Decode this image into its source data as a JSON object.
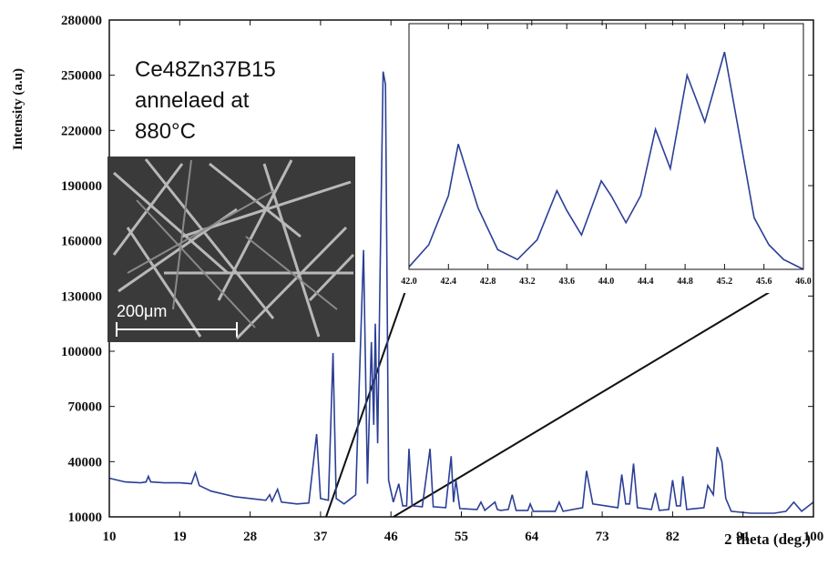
{
  "chart_data": [
    {
      "type": "line",
      "xlabel": "2 theta (deg.)",
      "ylabel": "Intensity (a.u)",
      "annotation": [
        "Ce48Zn37B15",
        "annelaed at",
        "880°C"
      ],
      "scale_bar": "200μm",
      "xlim": [
        10,
        100
      ],
      "xticks": [
        10,
        19,
        28,
        37,
        46,
        55,
        64,
        73,
        82,
        91,
        100
      ],
      "ylim": [
        10000,
        280000
      ],
      "yticks": [
        10000,
        40000,
        70000,
        100000,
        130000,
        160000,
        190000,
        220000,
        250000,
        280000
      ],
      "series": [
        {
          "color": "#2b3f96",
          "x": [
            10,
            12,
            14,
            14.7,
            15,
            15.3,
            17,
            19,
            20.5,
            21,
            21.5,
            23,
            26,
            28,
            30,
            30.5,
            30.8,
            31.5,
            32,
            34,
            35.5,
            36.5,
            37,
            38,
            38.6,
            39,
            40,
            41.5,
            42.5,
            43,
            43.5,
            43.8,
            44,
            44.3,
            44.6,
            45,
            45.3,
            45.7,
            46.3,
            47,
            47.5,
            48,
            48.3,
            48.7,
            50,
            51,
            51.4,
            53,
            53.7,
            54,
            54.3,
            54.8,
            57,
            57.5,
            58,
            59.3,
            59.6,
            60,
            61,
            61.5,
            62,
            63.5,
            63.8,
            64.2,
            67,
            67.5,
            68,
            70.5,
            71,
            71.8,
            75,
            75.5,
            76,
            76.5,
            77,
            77.5,
            79.3,
            79.8,
            80.3,
            81.5,
            82,
            82.5,
            83,
            83.3,
            83.8,
            86,
            86.5,
            87.2,
            87.7,
            88.3,
            88.8,
            89.5,
            92,
            95,
            96.5,
            97.5,
            98.5,
            100
          ],
          "values": [
            31000,
            29000,
            28500,
            29000,
            32000,
            29000,
            28500,
            28500,
            28000,
            34000,
            27000,
            24000,
            21000,
            20000,
            19000,
            22000,
            18500,
            25000,
            18000,
            17000,
            17500,
            55000,
            20000,
            19000,
            99000,
            20000,
            17000,
            22000,
            155000,
            28000,
            105000,
            60000,
            115000,
            50000,
            140000,
            252000,
            245000,
            30000,
            18000,
            28000,
            16000,
            16000,
            47000,
            16000,
            15500,
            47000,
            15500,
            15000,
            43000,
            18000,
            30000,
            14500,
            14000,
            18000,
            13500,
            18000,
            14000,
            13500,
            14000,
            22000,
            13500,
            13500,
            17000,
            13000,
            13000,
            18000,
            13000,
            15000,
            35000,
            17000,
            15000,
            33000,
            17000,
            17000,
            39000,
            15000,
            14000,
            23000,
            13500,
            14000,
            30000,
            16000,
            16000,
            32000,
            14000,
            15000,
            27000,
            22000,
            48000,
            40000,
            20000,
            13000,
            12000,
            12000,
            13000,
            18000,
            13000,
            18000
          ]
        }
      ]
    },
    {
      "type": "line",
      "xlim": [
        42.0,
        46.0
      ],
      "xticks": [
        {
          "value": 42.0,
          "label": "42.0"
        },
        {
          "value": 42.4,
          "label": "42.4"
        },
        {
          "value": 42.8,
          "label": "42.8"
        },
        {
          "value": 43.2,
          "label": "43.2"
        },
        {
          "value": 43.6,
          "label": "43.6"
        },
        {
          "value": 44.0,
          "label": "44.0"
        },
        {
          "value": 44.4,
          "label": "44.4"
        },
        {
          "value": 44.8,
          "label": "44.8"
        },
        {
          "value": 45.2,
          "label": "45.2"
        },
        {
          "value": 45.6,
          "label": "45.6"
        },
        {
          "value": 46.0,
          "label": "46.0"
        }
      ],
      "ylim": [
        0,
        1
      ],
      "series": [
        {
          "color": "#2b3f96",
          "x": [
            42.0,
            42.2,
            42.4,
            42.5,
            42.7,
            42.9,
            43.1,
            43.3,
            43.5,
            43.6,
            43.75,
            43.85,
            43.95,
            44.05,
            44.2,
            44.35,
            44.5,
            44.65,
            44.82,
            45.0,
            45.2,
            45.35,
            45.5,
            45.65,
            45.8,
            46.0
          ],
          "values": [
            0.01,
            0.1,
            0.3,
            0.51,
            0.25,
            0.08,
            0.04,
            0.12,
            0.32,
            0.24,
            0.14,
            0.25,
            0.36,
            0.3,
            0.19,
            0.3,
            0.57,
            0.41,
            0.79,
            0.6,
            0.885,
            0.55,
            0.21,
            0.1,
            0.04,
            0.0
          ]
        }
      ]
    }
  ]
}
